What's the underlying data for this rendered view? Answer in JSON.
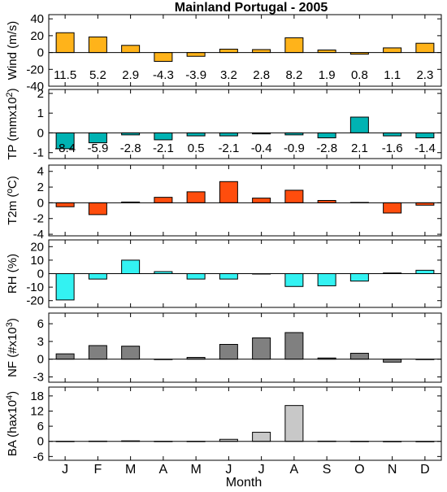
{
  "chart_data": {
    "type": "bar",
    "title": "Mainland Portugal - 2005",
    "xlabel": "Month",
    "categories": [
      "J",
      "F",
      "M",
      "A",
      "M",
      "J",
      "J",
      "A",
      "S",
      "O",
      "N",
      "D"
    ],
    "panels": [
      {
        "key": "wind",
        "ylabel": "Wind (m/s)",
        "color": "#FFB31A",
        "ylim": [
          -40,
          45
        ],
        "yticks": [
          40,
          20,
          0,
          -20,
          -40
        ],
        "values": [
          23.5,
          18.5,
          8.5,
          -10.5,
          -4.5,
          4,
          3.5,
          17.5,
          3,
          -2,
          5.5,
          11
        ],
        "annotations": [
          "11.5",
          "5.2",
          "2.9",
          "-4.3",
          "-3.9",
          "3.2",
          "2.8",
          "8.2",
          "1.9",
          "0.8",
          "1.1",
          "2.3"
        ]
      },
      {
        "key": "tp",
        "ylabel": "TP (mmx10^2)",
        "color": "#00B3B3",
        "ylim": [
          -1.3,
          2.2
        ],
        "yticks": [
          2,
          1,
          0,
          -1
        ],
        "values": [
          -0.8,
          -0.5,
          -0.1,
          -0.35,
          -0.15,
          -0.15,
          -0.05,
          -0.1,
          -0.25,
          0.8,
          -0.15,
          -0.25
        ],
        "annotations": [
          "-8.4",
          "-5.9",
          "-2.8",
          "-2.1",
          "0.5",
          "-2.1",
          "-0.4",
          "-0.9",
          "-2.8",
          "2.1",
          "-1.6",
          "-1.4"
        ]
      },
      {
        "key": "t2m",
        "ylabel": "T2m (ºC)",
        "color": "#FF4D0D",
        "ylim": [
          -4.2,
          4.8
        ],
        "yticks": [
          4,
          2,
          0,
          -2,
          -4
        ],
        "values": [
          -0.5,
          -1.5,
          0.1,
          0.7,
          1.4,
          2.7,
          0.6,
          1.6,
          0.3,
          0.05,
          -1.3,
          -0.3
        ]
      },
      {
        "key": "rh",
        "ylabel": "RH (%)",
        "color": "#33F2F2",
        "ylim": [
          -25,
          25
        ],
        "yticks": [
          20,
          10,
          0,
          -10,
          -20
        ],
        "values": [
          -19.5,
          -4,
          10,
          1.5,
          -4,
          -4,
          0,
          -9.5,
          -9,
          -5.5,
          0.5,
          2.5
        ]
      },
      {
        "key": "nf",
        "ylabel": "NF (#x10^3)",
        "color": "#808080",
        "ylim": [
          -3.9,
          7.8
        ],
        "yticks": [
          6,
          3,
          0,
          -3
        ],
        "values": [
          0.9,
          2.3,
          2.2,
          -0.05,
          0.3,
          2.5,
          3.6,
          4.5,
          0.2,
          1.0,
          -0.5,
          0
        ]
      },
      {
        "key": "ba",
        "ylabel": "BA (hax10^4)",
        "color": "#C8C8C8",
        "ylim": [
          -7.5,
          21.5
        ],
        "yticks": [
          18,
          12,
          6,
          0,
          -6
        ],
        "values": [
          0.05,
          0.1,
          0.2,
          0.05,
          0.05,
          0.8,
          3.6,
          14.2,
          0.1,
          0.05,
          0,
          0
        ]
      }
    ]
  }
}
